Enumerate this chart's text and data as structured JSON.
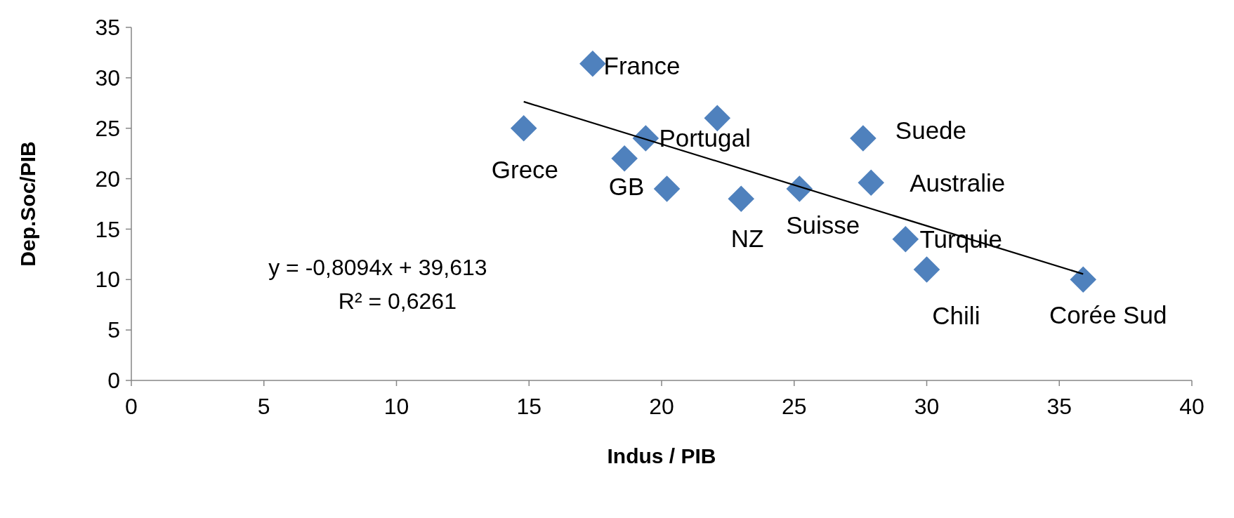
{
  "chart_data": {
    "type": "scatter",
    "xlabel": "Indus / PIB",
    "ylabel": "Dep.Soc/PIB",
    "xlim": [
      0,
      40
    ],
    "ylim": [
      0,
      35
    ],
    "xticks": [
      0,
      5,
      10,
      15,
      20,
      25,
      30,
      35,
      40
    ],
    "yticks": [
      0,
      5,
      10,
      15,
      20,
      25,
      30,
      35
    ],
    "grid": false,
    "series": [
      {
        "color": "#4f81bd",
        "marker": "diamond",
        "x": [
          14.8,
          17.4,
          18.6,
          19.4,
          20.2,
          22.1,
          23,
          25.2,
          27.6,
          27.9,
          29.2,
          30,
          35.9
        ],
        "values": [
          25,
          31.4,
          22,
          24,
          19,
          26,
          18,
          19,
          24,
          19.6,
          14,
          11,
          10
        ]
      },
      {
        "type": "line",
        "color": "#000000",
        "x": [
          14.8,
          35.9
        ],
        "values": [
          27.63,
          10.55
        ]
      }
    ],
    "annotations": [
      "y = -0,8094x + 39,613",
      "R² = 0,6261",
      {
        "text": "Grece",
        "x": 14.8,
        "y": 25
      },
      {
        "text": "France",
        "x": 17.4,
        "y": 31.4
      },
      {
        "text": "GB",
        "x": 18.6,
        "y": 22
      },
      {
        "text": "Portugal",
        "x": 19.4,
        "y": 24
      },
      {
        "text": "NZ",
        "x": 23,
        "y": 18
      },
      {
        "text": "Suisse",
        "x": 25.2,
        "y": 19
      },
      {
        "text": "Suede",
        "x": 27.6,
        "y": 24
      },
      {
        "text": "Australie",
        "x": 27.9,
        "y": 19.6
      },
      {
        "text": "Turquie",
        "x": 29.2,
        "y": 14
      },
      {
        "text": "Chili",
        "x": 30,
        "y": 11
      },
      {
        "text": "Corée Sud",
        "x": 35.9,
        "y": 10
      }
    ]
  }
}
